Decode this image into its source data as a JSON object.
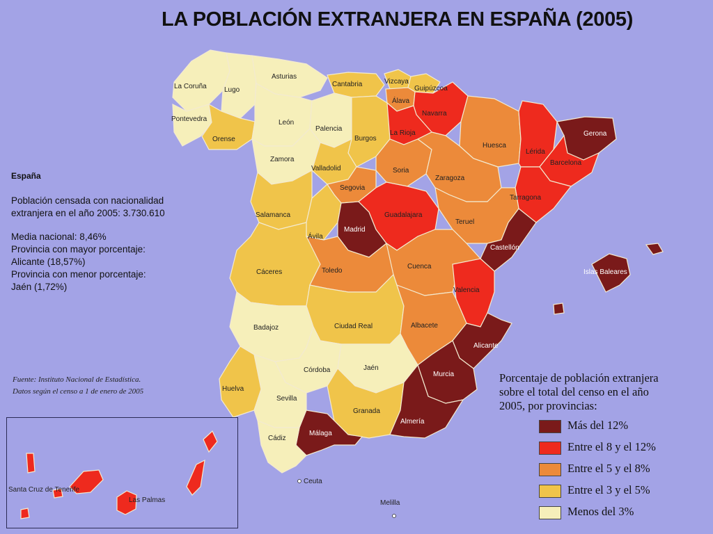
{
  "title": "LA POBLACIÓN EXTRANJERA EN ESPAÑA (2005)",
  "stats": {
    "heading": "España",
    "lines": [
      "Población censada con nacionalidad",
      "extranjera en el año 2005: 3.730.610",
      "",
      "Media nacional: 8,46%",
      "Provincia con mayor porcentaje:",
      "Alicante (18,57%)",
      "Provincia con menor porcentaje:",
      "Jaén (1,72%)"
    ]
  },
  "source": {
    "line1": "Fuente: Instituto Nacional de Estadística.",
    "line2": "Datos según el censo a 1 de enero de 2005"
  },
  "legend": {
    "title": [
      "Porcentaje de población extranjera",
      "sobre el total del censo en el año",
      "2005, por provincias:"
    ],
    "items": [
      {
        "label": "Más del 12%",
        "color": "#7a1a1a"
      },
      {
        "label": "Entre el 8 y el 12%",
        "color": "#ee2a1e"
      },
      {
        "label": "Entre el 5 y el 8%",
        "color": "#ec8a3a"
      },
      {
        "label": "Entre el 3 y el 5%",
        "color": "#f0c44a"
      },
      {
        "label": "Menos del 3%",
        "color": "#f6efba"
      }
    ]
  },
  "provinces": [
    {
      "name": "La Coruña",
      "tier": 4
    },
    {
      "name": "Lugo",
      "tier": 4
    },
    {
      "name": "Asturias",
      "tier": 4
    },
    {
      "name": "Cantabria",
      "tier": 3
    },
    {
      "name": "Vizcaya",
      "tier": 3
    },
    {
      "name": "Guipúzcoa",
      "tier": 3
    },
    {
      "name": "Álava",
      "tier": 2
    },
    {
      "name": "Navarra",
      "tier": 1
    },
    {
      "name": "Pontevedra",
      "tier": 4
    },
    {
      "name": "Orense",
      "tier": 3
    },
    {
      "name": "León",
      "tier": 4
    },
    {
      "name": "Palencia",
      "tier": 4
    },
    {
      "name": "Burgos",
      "tier": 3
    },
    {
      "name": "La Rioja",
      "tier": 1
    },
    {
      "name": "Huesca",
      "tier": 2
    },
    {
      "name": "Lérida",
      "tier": 1
    },
    {
      "name": "Gerona",
      "tier": 0
    },
    {
      "name": "Barcelona",
      "tier": 1
    },
    {
      "name": "Zamora",
      "tier": 4
    },
    {
      "name": "Valladolid",
      "tier": 3
    },
    {
      "name": "Soria",
      "tier": 2
    },
    {
      "name": "Zaragoza",
      "tier": 2
    },
    {
      "name": "Tarragona",
      "tier": 1
    },
    {
      "name": "Segovia",
      "tier": 2
    },
    {
      "name": "Salamanca",
      "tier": 3
    },
    {
      "name": "Ávila",
      "tier": 3
    },
    {
      "name": "Madrid",
      "tier": 0
    },
    {
      "name": "Guadalajara",
      "tier": 1
    },
    {
      "name": "Teruel",
      "tier": 2
    },
    {
      "name": "Castellón",
      "tier": 0
    },
    {
      "name": "Cáceres",
      "tier": 3
    },
    {
      "name": "Toledo",
      "tier": 2
    },
    {
      "name": "Cuenca",
      "tier": 2
    },
    {
      "name": "Valencia",
      "tier": 1
    },
    {
      "name": "Islas Baleares",
      "tier": 0
    },
    {
      "name": "Badajoz",
      "tier": 4
    },
    {
      "name": "Ciudad Real",
      "tier": 3
    },
    {
      "name": "Albacete",
      "tier": 2
    },
    {
      "name": "Alicante",
      "tier": 0
    },
    {
      "name": "Córdoba",
      "tier": 4
    },
    {
      "name": "Jaén",
      "tier": 4
    },
    {
      "name": "Murcia",
      "tier": 0
    },
    {
      "name": "Huelva",
      "tier": 3
    },
    {
      "name": "Sevilla",
      "tier": 4
    },
    {
      "name": "Granada",
      "tier": 3
    },
    {
      "name": "Almería",
      "tier": 0
    },
    {
      "name": "Málaga",
      "tier": 0
    },
    {
      "name": "Cádiz",
      "tier": 4
    },
    {
      "name": "Ceuta",
      "tier": null
    },
    {
      "name": "Melilla",
      "tier": null
    },
    {
      "name": "Santa Cruz de Tenerife",
      "tier": 1
    },
    {
      "name": "Las Palmas",
      "tier": 1
    }
  ]
}
